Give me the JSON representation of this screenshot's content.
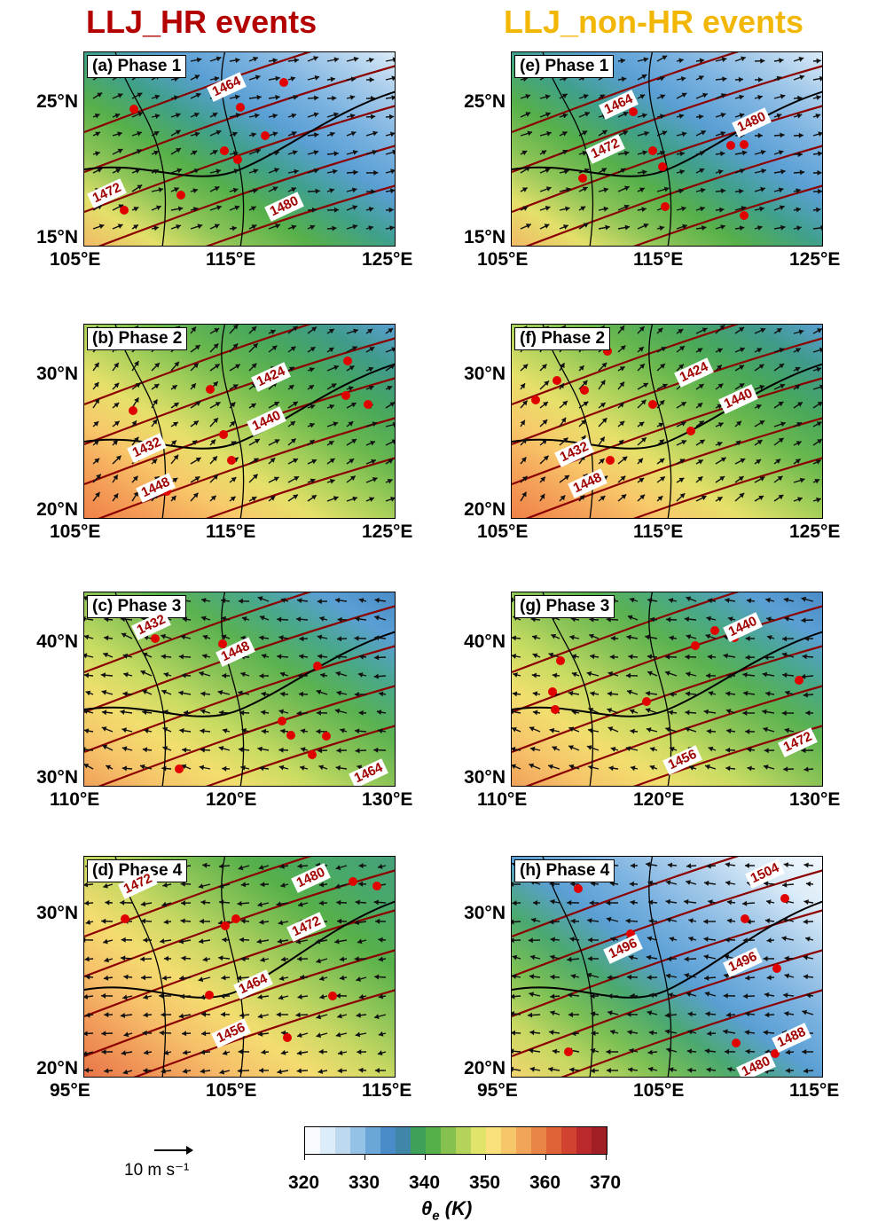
{
  "titles": {
    "left": {
      "text": "LLJ_HR events",
      "color": "#b30000"
    },
    "right": {
      "text": "LLJ_non-HR events",
      "color": "#f2b705"
    }
  },
  "panels": [
    {
      "id": "a",
      "label": "(a) Phase 1",
      "col": 0,
      "row": 0,
      "xticks": [
        "105°E",
        "115°E",
        "125°E"
      ],
      "yticks": [
        "25°N",
        "15°N"
      ],
      "contours": [
        "1464",
        "1472",
        "1480"
      ],
      "palette": "cool"
    },
    {
      "id": "e",
      "label": "(e) Phase 1",
      "col": 1,
      "row": 0,
      "xticks": [
        "105°E",
        "115°E",
        "125°E"
      ],
      "yticks": [
        "25°N",
        "15°N"
      ],
      "contours": [
        "1464",
        "1472",
        "1480"
      ],
      "palette": "cool"
    },
    {
      "id": "b",
      "label": "(b) Phase 2",
      "col": 0,
      "row": 1,
      "xticks": [
        "105°E",
        "115°E",
        "125°E"
      ],
      "yticks": [
        "30°N",
        "20°N"
      ],
      "contours": [
        "1424",
        "1440",
        "1432",
        "1448"
      ],
      "palette": "warm"
    },
    {
      "id": "f",
      "label": "(f) Phase 2",
      "col": 1,
      "row": 1,
      "xticks": [
        "105°E",
        "115°E",
        "125°E"
      ],
      "yticks": [
        "30°N",
        "20°N"
      ],
      "contours": [
        "1424",
        "1440",
        "1432",
        "1448"
      ],
      "palette": "warm"
    },
    {
      "id": "c",
      "label": "(c) Phase 3",
      "col": 0,
      "row": 2,
      "xticks": [
        "110°E",
        "120°E",
        "130°E"
      ],
      "yticks": [
        "40°N",
        "30°N"
      ],
      "contours": [
        "1432",
        "1448",
        "1464"
      ],
      "palette": "mid"
    },
    {
      "id": "g",
      "label": "(g) Phase 3",
      "col": 1,
      "row": 2,
      "xticks": [
        "110°E",
        "120°E",
        "130°E"
      ],
      "yticks": [
        "40°N",
        "30°N"
      ],
      "contours": [
        "1440",
        "1456",
        "1472"
      ],
      "palette": "mid"
    },
    {
      "id": "d",
      "label": "(d) Phase 4",
      "col": 0,
      "row": 3,
      "xticks": [
        "95°E",
        "105°E",
        "115°E"
      ],
      "yticks": [
        "30°N",
        "20°N"
      ],
      "contours": [
        "1472",
        "1480",
        "1472",
        "1464",
        "1456"
      ],
      "palette": "hot"
    },
    {
      "id": "h",
      "label": "(h) Phase 4",
      "col": 1,
      "row": 3,
      "xticks": [
        "95°E",
        "105°E",
        "115°E"
      ],
      "yticks": [
        "30°N",
        "20°N"
      ],
      "contours": [
        "1504",
        "1496",
        "1496",
        "1488",
        "1480"
      ],
      "palette": "coolhot"
    }
  ],
  "colorbar": {
    "ticks": [
      "320",
      "330",
      "340",
      "350",
      "360",
      "370"
    ],
    "title": "θe (K)",
    "colors": [
      "#f7fbff",
      "#dcecf8",
      "#bcd9f0",
      "#93c2e6",
      "#6aa7d8",
      "#4a8cc8",
      "#3f86a8",
      "#3fa05a",
      "#56b04a",
      "#86c150",
      "#b4d35a",
      "#e0e46a",
      "#f9e07a",
      "#f6c66a",
      "#f0a558",
      "#e98447",
      "#e06238",
      "#d14230",
      "#bb2a2a",
      "#a01f24"
    ]
  },
  "reference_vector": {
    "label": "10 m s⁻¹"
  }
}
